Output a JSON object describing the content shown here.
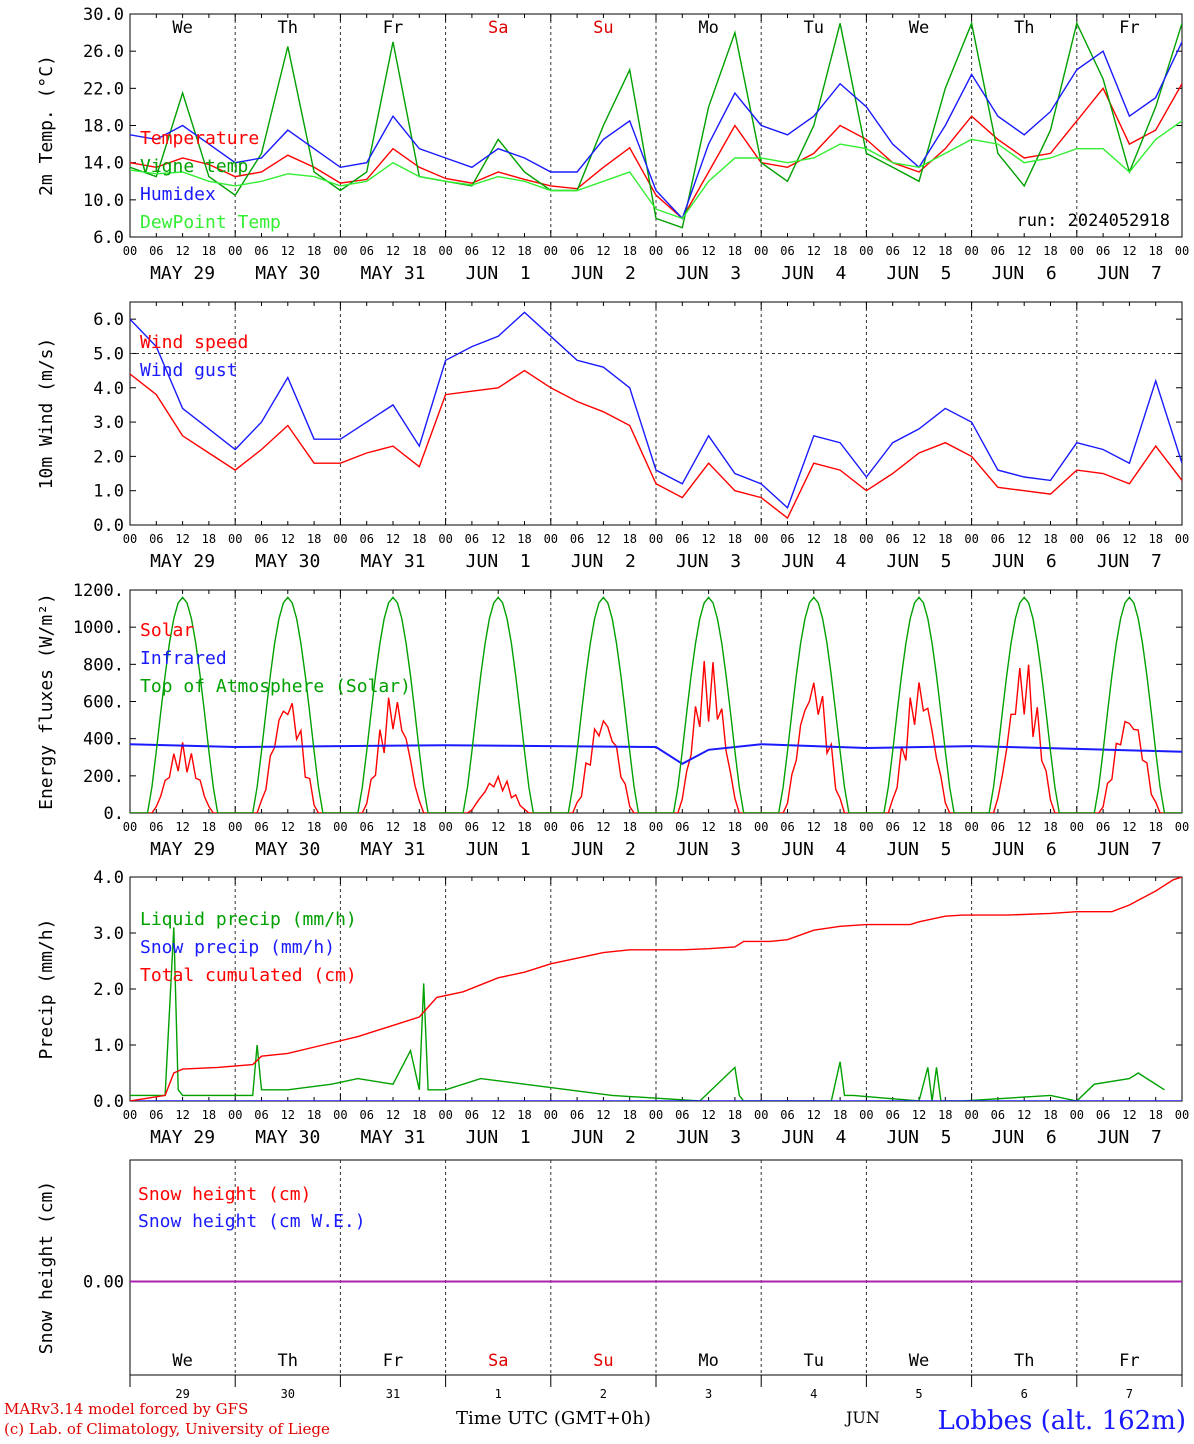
{
  "run_label": "run: 2024052918",
  "hour_ticks": [
    "00",
    "06",
    "12",
    "18"
  ],
  "date_labels": [
    "MAY 29",
    "MAY 30",
    "MAY 31",
    "JUN  1",
    "JUN  2",
    "JUN  3",
    "JUN  4",
    "JUN  5",
    "JUN  6",
    "JUN  7"
  ],
  "weekdays": [
    "We",
    "Th",
    "Fr",
    "Sa",
    "Su",
    "Mo",
    "Tu",
    "We",
    "Th",
    "Fr"
  ],
  "weekday_colors": [
    "#000000",
    "#000000",
    "#000000",
    "#e00000",
    "#e00000",
    "#000000",
    "#000000",
    "#000000",
    "#000000",
    "#000000"
  ],
  "day_numbers": [
    "29",
    "30",
    "31",
    "1",
    "2",
    "3",
    "4",
    "5",
    "6",
    "7"
  ],
  "footer": {
    "line1": "MARv3.14 model forced by GFS",
    "line2": "(c) Lab. of Climatology, University of Liege",
    "xlabel": "Time UTC (GMT+0h)",
    "month": "JUN",
    "station": "Lobbes (alt. 162m)"
  },
  "colors": {
    "red": "#ff0000",
    "green": "#00a000",
    "lightgreen": "#33ee33",
    "blue": "#1a1aff",
    "purple": "#aa22aa"
  },
  "chart_data": [
    {
      "type": "line",
      "ylabel": "2m Temp. (°C)",
      "ylim": [
        6.0,
        30.0
      ],
      "yticks": [
        "6.0",
        "10.0",
        "14.0",
        "18.0",
        "22.0",
        "26.0",
        "30.0"
      ],
      "x_unit": "hours from 2024-05-29 00 UTC",
      "grid": "dashed vertical day separators",
      "legend_position": "left",
      "series": [
        {
          "name": "Temperature",
          "color": "red",
          "x": [
            0,
            6,
            12,
            18,
            24,
            30,
            36,
            42,
            48,
            54,
            60,
            66,
            72,
            78,
            84,
            90,
            96,
            102,
            108,
            114,
            120,
            126,
            132,
            138,
            144,
            150,
            156,
            162,
            168,
            174,
            180,
            186,
            192,
            198,
            204,
            210,
            216,
            222,
            228,
            234,
            240
          ],
          "y": [
            14.0,
            13.5,
            14.5,
            13.8,
            12.5,
            13.0,
            14.8,
            13.5,
            11.8,
            12.2,
            15.5,
            13.5,
            12.3,
            11.8,
            13.0,
            12.2,
            11.5,
            11.2,
            13.5,
            15.6,
            10.5,
            8.0,
            13.0,
            18.0,
            14.0,
            13.5,
            15.0,
            18.0,
            16.5,
            14.0,
            13.0,
            15.5,
            19.0,
            16.5,
            14.5,
            15.0,
            18.5,
            22.0,
            16.0,
            17.5,
            22.5
          ]
        },
        {
          "name": "Vigne temp",
          "color": "green",
          "x": [
            0,
            6,
            12,
            18,
            24,
            30,
            36,
            42,
            48,
            54,
            60,
            66,
            72,
            78,
            84,
            90,
            96,
            102,
            108,
            114,
            120,
            126,
            132,
            138,
            144,
            150,
            156,
            162,
            168,
            174,
            180,
            186,
            192,
            198,
            204,
            210,
            216,
            222,
            228,
            234,
            240
          ],
          "y": [
            13.5,
            12.5,
            21.5,
            12.5,
            10.5,
            15.0,
            26.5,
            13.0,
            11.0,
            13.0,
            27.0,
            12.5,
            12.0,
            11.5,
            16.5,
            13.0,
            11.0,
            11.0,
            18.0,
            24.0,
            8.0,
            7.0,
            20.0,
            28.0,
            14.0,
            12.0,
            18.0,
            29.0,
            15.0,
            13.5,
            12.0,
            22.0,
            29.0,
            15.0,
            11.5,
            17.5,
            29.0,
            23.0,
            13.0,
            20.0,
            29.0
          ]
        },
        {
          "name": "Humidex",
          "color": "blue",
          "x": [
            0,
            6,
            12,
            18,
            24,
            30,
            36,
            42,
            48,
            54,
            60,
            66,
            72,
            78,
            84,
            90,
            96,
            102,
            108,
            114,
            120,
            126,
            132,
            138,
            144,
            150,
            156,
            162,
            168,
            174,
            180,
            186,
            192,
            198,
            204,
            210,
            216,
            222,
            228,
            234,
            240
          ],
          "y": [
            17.0,
            16.5,
            18.0,
            16.0,
            14.0,
            14.5,
            17.5,
            15.5,
            13.5,
            14.0,
            19.0,
            15.5,
            14.5,
            13.5,
            15.5,
            14.5,
            13.0,
            13.0,
            16.5,
            18.5,
            11.0,
            8.0,
            16.0,
            21.5,
            18.0,
            17.0,
            19.0,
            22.5,
            20.0,
            16.0,
            13.5,
            18.0,
            23.5,
            19.0,
            17.0,
            19.5,
            24.0,
            26.0,
            19.0,
            21.0,
            27.0
          ]
        },
        {
          "name": "DewPoint Temp",
          "color": "lightgreen",
          "x": [
            0,
            6,
            12,
            18,
            24,
            30,
            36,
            42,
            48,
            54,
            60,
            66,
            72,
            78,
            84,
            90,
            96,
            102,
            108,
            114,
            120,
            126,
            132,
            138,
            144,
            150,
            156,
            162,
            168,
            174,
            180,
            186,
            192,
            198,
            204,
            210,
            216,
            222,
            228,
            234,
            240
          ],
          "y": [
            13.2,
            12.8,
            13.0,
            12.0,
            11.5,
            12.0,
            12.8,
            12.5,
            11.5,
            12.0,
            14.0,
            12.5,
            12.0,
            11.6,
            12.5,
            12.0,
            11.0,
            11.0,
            12.0,
            13.0,
            9.0,
            8.0,
            12.0,
            14.5,
            14.5,
            14.0,
            14.5,
            16.0,
            15.5,
            14.0,
            13.5,
            15.0,
            16.5,
            16.0,
            14.0,
            14.5,
            15.5,
            15.5,
            13.0,
            16.5,
            18.5
          ]
        }
      ]
    },
    {
      "type": "line",
      "ylabel": "10m Wind (m/s)",
      "ylim": [
        0.0,
        6.5
      ],
      "yticks": [
        "0.0",
        "1.0",
        "2.0",
        "3.0",
        "4.0",
        "5.0",
        "6.0"
      ],
      "legend_position": "left",
      "series": [
        {
          "name": "Wind speed",
          "color": "red",
          "x": [
            0,
            6,
            12,
            18,
            24,
            30,
            36,
            42,
            48,
            54,
            60,
            66,
            72,
            78,
            84,
            90,
            96,
            102,
            108,
            114,
            120,
            126,
            132,
            138,
            144,
            150,
            156,
            162,
            168,
            174,
            180,
            186,
            192,
            198,
            204,
            210,
            216,
            222,
            228,
            234,
            240
          ],
          "y": [
            4.4,
            3.8,
            2.6,
            2.1,
            1.6,
            2.2,
            2.9,
            1.8,
            1.8,
            2.1,
            2.3,
            1.7,
            3.8,
            3.9,
            4.0,
            4.5,
            4.0,
            3.6,
            3.3,
            2.9,
            1.2,
            0.8,
            1.8,
            1.0,
            0.8,
            0.2,
            1.8,
            1.6,
            1.0,
            1.5,
            2.1,
            2.4,
            2.0,
            1.1,
            1.0,
            0.9,
            1.6,
            1.5,
            1.2,
            2.3,
            1.3
          ]
        },
        {
          "name": "Wind gust",
          "color": "blue",
          "x": [
            0,
            6,
            12,
            18,
            24,
            30,
            36,
            42,
            48,
            54,
            60,
            66,
            72,
            78,
            84,
            90,
            96,
            102,
            108,
            114,
            120,
            126,
            132,
            138,
            144,
            150,
            156,
            162,
            168,
            174,
            180,
            186,
            192,
            198,
            204,
            210,
            216,
            222,
            228,
            234,
            240
          ],
          "y": [
            6.0,
            5.2,
            3.4,
            2.8,
            2.2,
            3.0,
            4.3,
            2.5,
            2.5,
            3.0,
            3.5,
            2.3,
            4.8,
            5.2,
            5.5,
            6.2,
            5.5,
            4.8,
            4.6,
            4.0,
            1.6,
            1.2,
            2.6,
            1.5,
            1.2,
            0.5,
            2.6,
            2.4,
            1.4,
            2.4,
            2.8,
            3.4,
            3.0,
            1.6,
            1.4,
            1.3,
            2.4,
            2.2,
            1.8,
            4.2,
            1.8
          ]
        }
      ]
    },
    {
      "type": "line",
      "ylabel": "Energy fluxes (W/m²)",
      "ylim": [
        0,
        1200
      ],
      "yticks": [
        "0.",
        "200.",
        "400.",
        "600.",
        "800.",
        "1000.",
        "1200."
      ],
      "legend_position": "left",
      "series": [
        {
          "name": "Solar",
          "color": "red",
          "daily_peaks": [
            380,
            650,
            650,
            200,
            550,
            850,
            750,
            730,
            830,
            560
          ]
        },
        {
          "name": "Infrared",
          "color": "blue",
          "x": [
            0,
            24,
            48,
            72,
            96,
            120,
            126,
            132,
            144,
            168,
            192,
            216,
            240
          ],
          "y": [
            370,
            355,
            360,
            365,
            360,
            355,
            265,
            340,
            370,
            350,
            360,
            345,
            330
          ]
        },
        {
          "name": "Top of Atmosphere (Solar)",
          "color": "green",
          "daily_peak": 1160
        }
      ]
    },
    {
      "type": "line",
      "ylabel": "Precip (mm/h)",
      "ylim": [
        0.0,
        4.0
      ],
      "yticks": [
        "0.0",
        "1.0",
        "2.0",
        "3.0",
        "4.0"
      ],
      "legend_position": "left",
      "series": [
        {
          "name": "Liquid precip (mm/h)",
          "color": "green",
          "x": [
            0,
            8,
            10,
            11,
            12,
            14,
            20,
            28,
            29,
            30,
            36,
            46,
            52,
            60,
            64,
            66,
            67,
            68,
            72,
            80,
            90,
            100,
            110,
            130,
            138,
            139,
            140,
            160,
            162,
            163,
            165,
            180,
            182,
            183,
            184,
            185,
            190,
            210,
            216,
            220,
            228,
            230,
            232,
            236
          ],
          "y": [
            0.1,
            0.1,
            3.1,
            0.2,
            0.1,
            0.1,
            0.1,
            0.1,
            1.0,
            0.2,
            0.2,
            0.3,
            0.4,
            0.3,
            0.9,
            0.2,
            2.1,
            0.2,
            0.2,
            0.4,
            0.3,
            0.2,
            0.1,
            0.0,
            0.6,
            0.1,
            0.0,
            0.0,
            0.7,
            0.1,
            0.1,
            0.0,
            0.6,
            0.0,
            0.6,
            0.0,
            0.0,
            0.1,
            0.0,
            0.3,
            0.4,
            0.5,
            0.4,
            0.2
          ]
        },
        {
          "name": "Snow precip (mm/h)",
          "color": "blue",
          "x": [
            0,
            240
          ],
          "y": [
            0,
            0
          ]
        },
        {
          "name": "Total cumulated (cm)",
          "color": "red",
          "x": [
            0,
            8,
            10,
            12,
            20,
            28,
            30,
            36,
            44,
            52,
            60,
            66,
            70,
            76,
            84,
            90,
            96,
            102,
            108,
            114,
            120,
            126,
            132,
            138,
            140,
            146,
            150,
            156,
            162,
            168,
            178,
            180,
            186,
            190,
            200,
            210,
            216,
            224,
            228,
            234,
            238,
            240
          ],
          "y": [
            0.0,
            0.1,
            0.5,
            0.57,
            0.6,
            0.65,
            0.8,
            0.85,
            1.0,
            1.15,
            1.35,
            1.5,
            1.85,
            1.95,
            2.2,
            2.3,
            2.45,
            2.55,
            2.65,
            2.7,
            2.7,
            2.7,
            2.72,
            2.75,
            2.85,
            2.85,
            2.88,
            3.05,
            3.12,
            3.15,
            3.15,
            3.2,
            3.3,
            3.32,
            3.32,
            3.35,
            3.38,
            3.38,
            3.5,
            3.75,
            3.95,
            4.0
          ]
        }
      ]
    },
    {
      "type": "line",
      "ylabel": "Snow height (cm)",
      "yticks": [
        "0.00"
      ],
      "legend_position": "left",
      "series": [
        {
          "name": "Snow height (cm)",
          "color": "red",
          "x": [
            0,
            240
          ],
          "y": [
            0,
            0
          ]
        },
        {
          "name": "Snow height (cm W.E.)",
          "color": "blue",
          "x": [
            0,
            240
          ],
          "y": [
            0,
            0
          ]
        }
      ]
    }
  ]
}
